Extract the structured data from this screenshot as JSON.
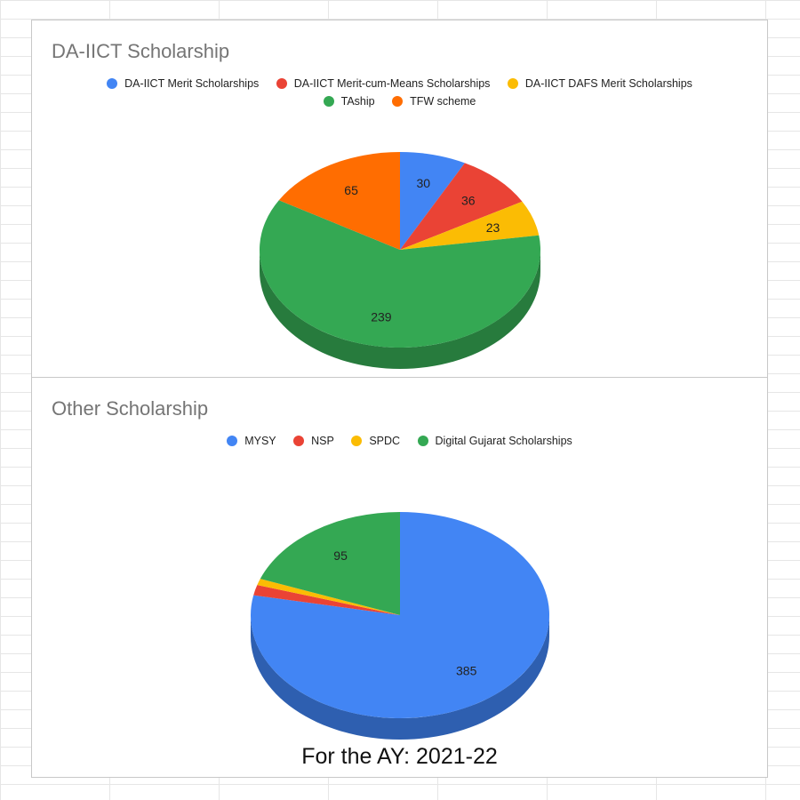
{
  "footer": {
    "caption": "For the AY: 2021-22"
  },
  "chart_data": [
    {
      "type": "pie",
      "title": "DA-IICT Scholarship",
      "legend_position": "top",
      "categories": [
        "DA-IICT Merit Scholarships",
        "DA-IICT Merit-cum-Means Scholarships",
        "DA-IICT DAFS Merit Scholarships",
        "TAship",
        "TFW scheme"
      ],
      "values": [
        30,
        36,
        23,
        239,
        65
      ],
      "colors": [
        "#4285f4",
        "#ea4335",
        "#fbbc04",
        "#34a853",
        "#ff6d01"
      ],
      "side_colors": [
        "#2e5fb0",
        "#a8302a",
        "#b68a05",
        "#277b3d",
        "#b84f02"
      ],
      "data_labels": [
        "30",
        "36",
        "23",
        "239",
        "65"
      ]
    },
    {
      "type": "pie",
      "title": "Other Scholarship",
      "legend_position": "top",
      "categories": [
        "MYSY",
        "NSP",
        "SPDC",
        "Digital Gujarat Scholarships"
      ],
      "values": [
        385,
        8,
        5,
        95
      ],
      "colors": [
        "#4285f4",
        "#ea4335",
        "#fbbc04",
        "#34a853"
      ],
      "side_colors": [
        "#2e5fb0",
        "#a8302a",
        "#b68a05",
        "#277b3d"
      ],
      "data_labels": [
        "385",
        "",
        "",
        "95"
      ]
    }
  ]
}
